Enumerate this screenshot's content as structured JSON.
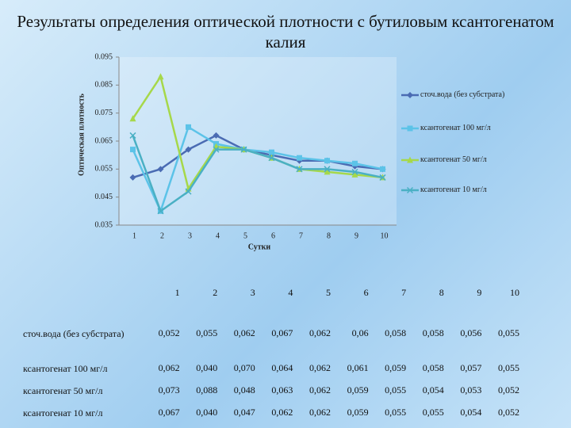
{
  "title": "Результаты определения оптической плотности с бутиловым ксантогенатом калия",
  "chart_data": {
    "type": "line",
    "y_label": "Оптическая плотность",
    "x_label": "Сутки",
    "categories": [
      "1",
      "2",
      "3",
      "4",
      "5",
      "6",
      "7",
      "8",
      "9",
      "10"
    ],
    "ylim": [
      0.035,
      0.095
    ],
    "yticks": [
      0.035,
      0.045,
      0.055,
      0.065,
      0.075,
      0.085,
      0.095
    ],
    "legend": "right",
    "series": [
      {
        "name": "сточ.вода (без субстрата)",
        "color": "#4a6bb3",
        "marker": "diamond",
        "values": [
          0.052,
          0.055,
          0.062,
          0.067,
          0.062,
          0.06,
          0.058,
          0.058,
          0.056,
          0.055
        ],
        "value_labels": [
          "0,052",
          "0,055",
          "0,062",
          "0,067",
          "0,062",
          "0,06",
          "0,058",
          "0,058",
          "0,056",
          "0,055"
        ]
      },
      {
        "name": "ксантогенат 100 мг/л",
        "color": "#5cc3e8",
        "marker": "square",
        "values": [
          0.062,
          0.04,
          0.07,
          0.064,
          0.062,
          0.061,
          0.059,
          0.058,
          0.057,
          0.055
        ],
        "value_labels": [
          "0,062",
          "0,040",
          "0,070",
          "0,064",
          "0,062",
          "0,061",
          "0,059",
          "0,058",
          "0,057",
          "0,055"
        ]
      },
      {
        "name": "ксантогенат 50 мг/л",
        "color": "#a6d84a",
        "marker": "triangle",
        "values": [
          0.073,
          0.088,
          0.048,
          0.063,
          0.062,
          0.059,
          0.055,
          0.054,
          0.053,
          0.052
        ],
        "value_labels": [
          "0,073",
          "0,088",
          "0,048",
          "0,063",
          "0,062",
          "0,059",
          "0,055",
          "0,054",
          "0,053",
          "0,052"
        ]
      },
      {
        "name": "ксантогенат 10 мг/л",
        "color": "#4ab0c4",
        "marker": "x",
        "values": [
          0.067,
          0.04,
          0.047,
          0.062,
          0.062,
          0.059,
          0.055,
          0.055,
          0.054,
          0.052
        ],
        "value_labels": [
          "0,067",
          "0,040",
          "0,047",
          "0,062",
          "0,062",
          "0,059",
          "0,055",
          "0,055",
          "0,054",
          "0,052"
        ]
      }
    ]
  }
}
